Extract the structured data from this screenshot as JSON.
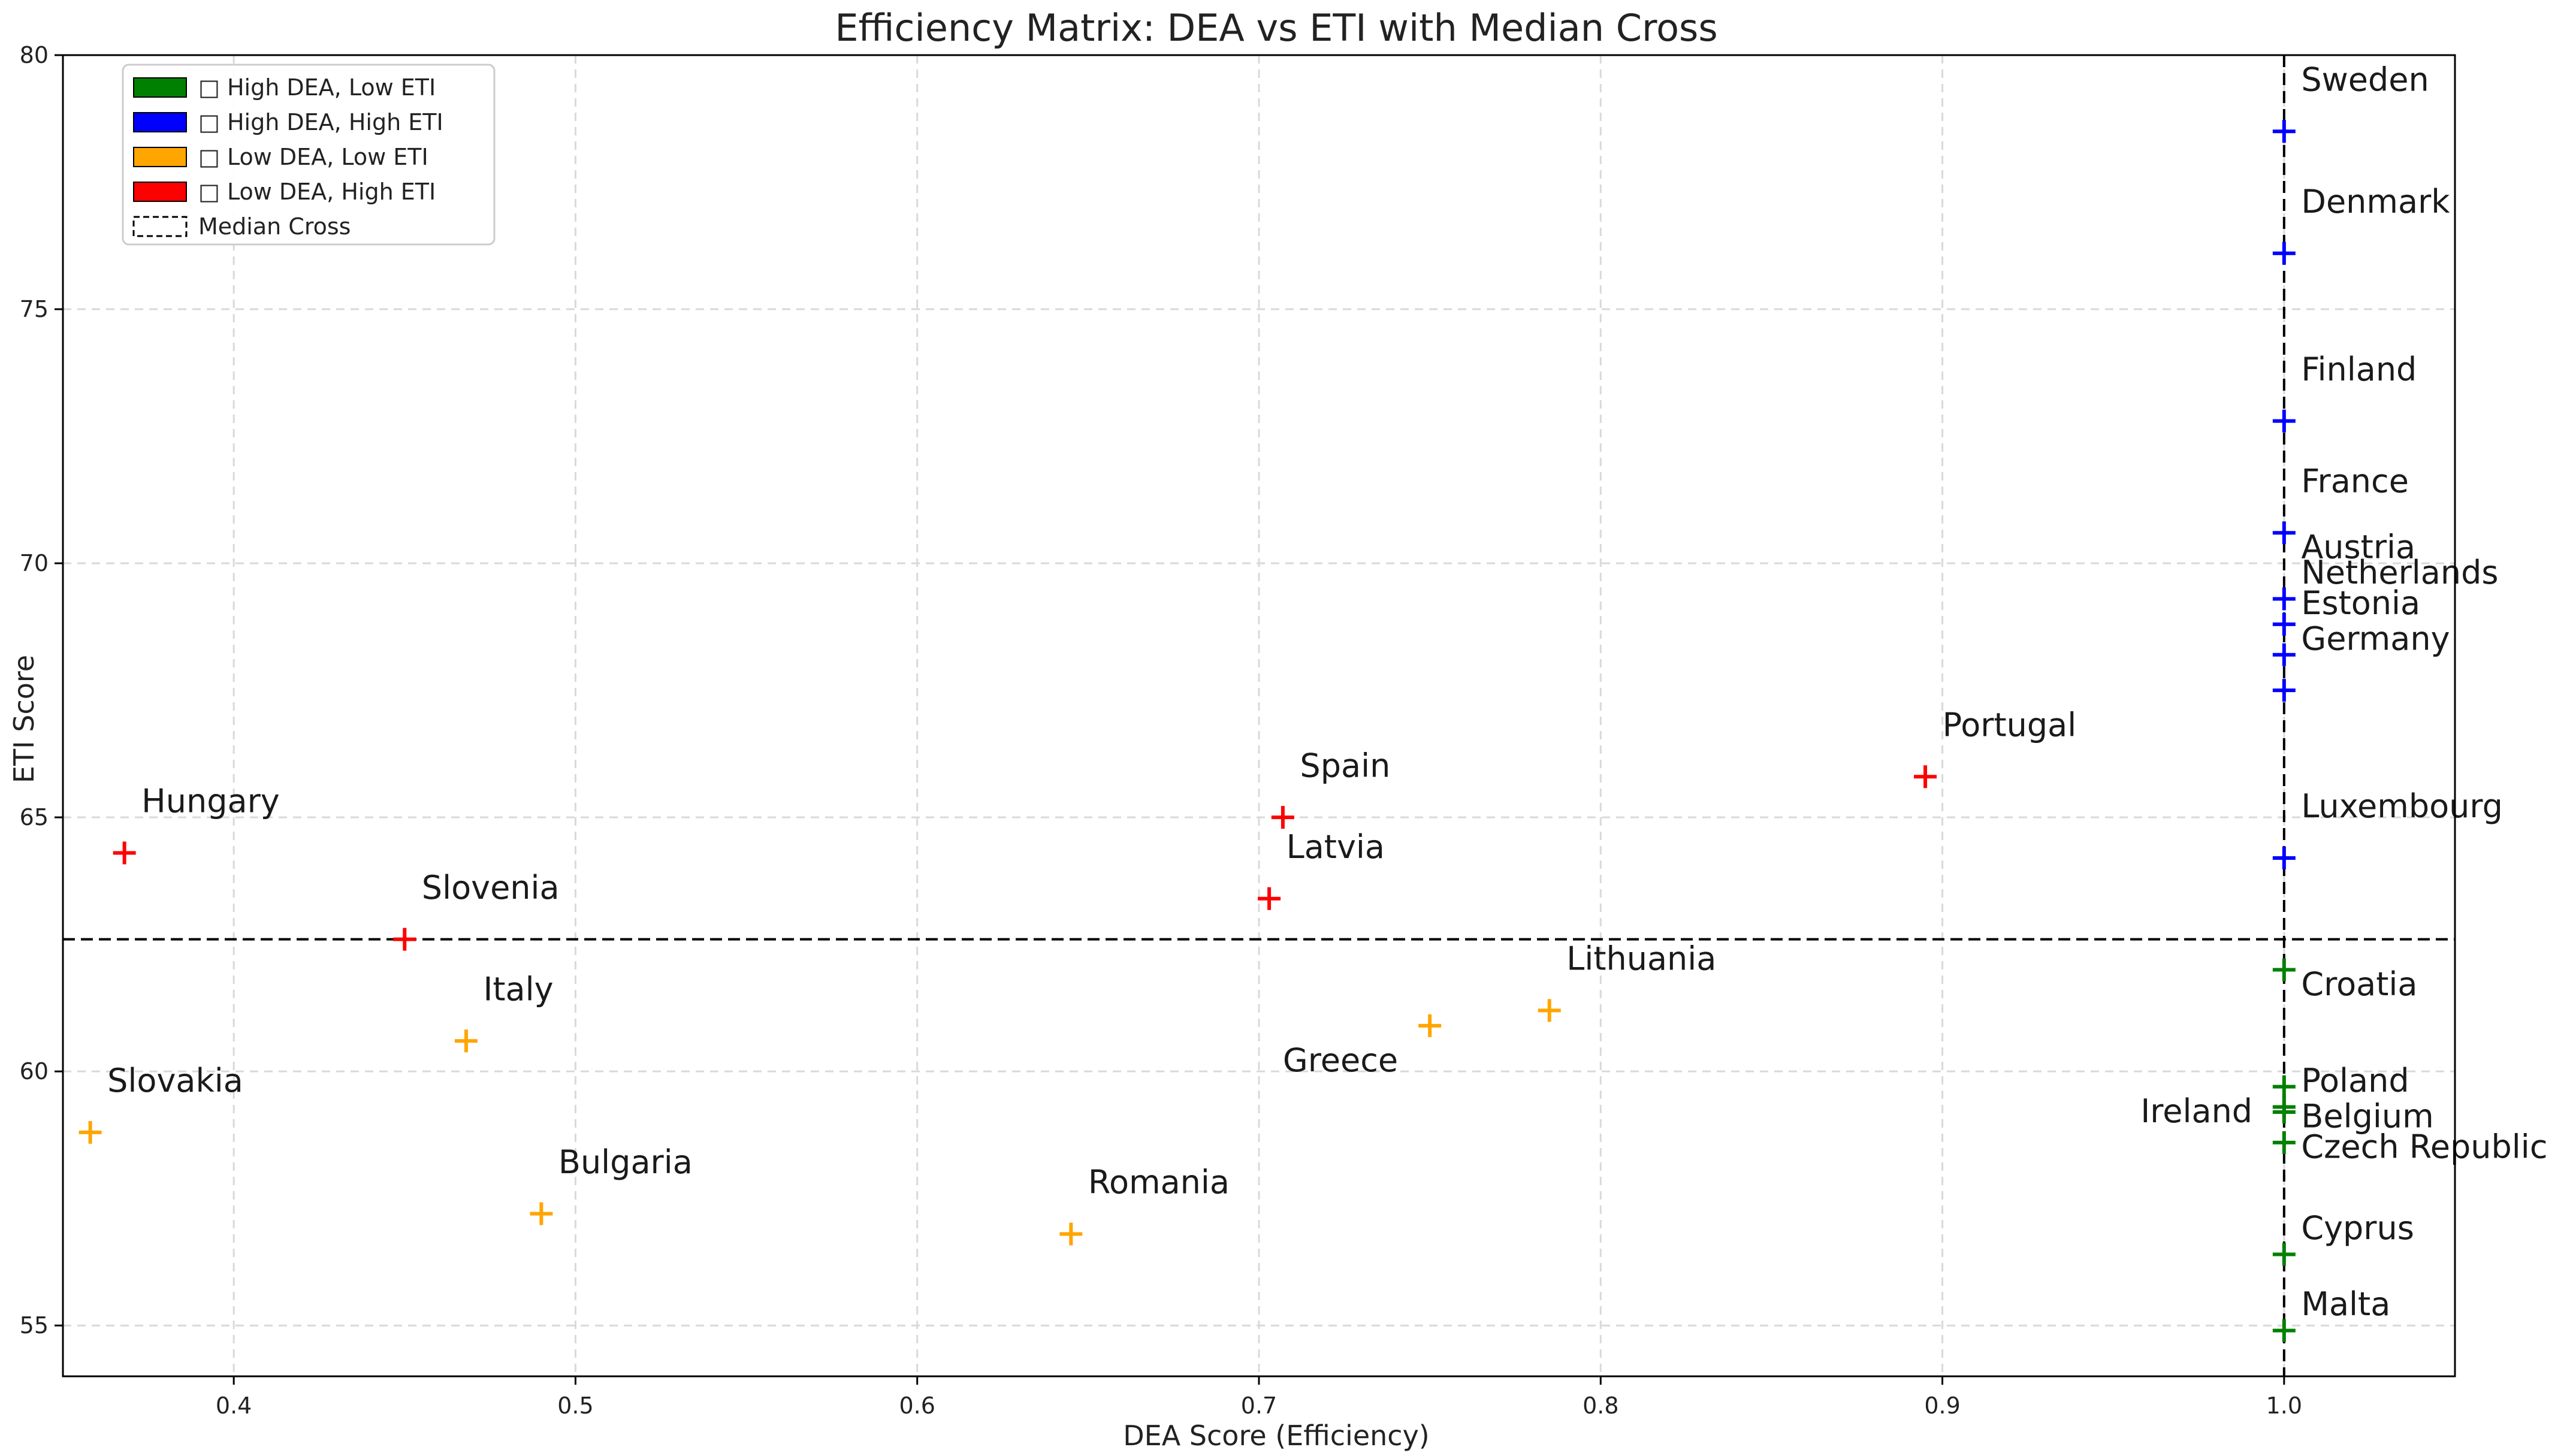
{
  "chart_data": {
    "type": "scatter",
    "title": "Efficiency Matrix: DEA vs ETI with Median Cross",
    "xlabel": "DEA Score (Efficiency)",
    "ylabel": "ETI Score",
    "xlim": [
      0.35,
      1.05
    ],
    "ylim": [
      54,
      80
    ],
    "xticks": [
      0.4,
      0.5,
      0.6,
      0.7,
      0.8,
      0.9,
      1.0
    ],
    "xtick_labels": [
      "0.4",
      "0.5",
      "0.6",
      "0.7",
      "0.8",
      "0.9",
      "1.0"
    ],
    "yticks": [
      55,
      60,
      65,
      70,
      75,
      80
    ],
    "ytick_labels": [
      "55",
      "60",
      "65",
      "70",
      "75",
      "80"
    ],
    "grid": true,
    "legend_position": "top-left",
    "median": {
      "x": 1.0,
      "y": 62.6
    },
    "legend": [
      {
        "label": "□ High DEA, Low ETI",
        "color": "#008000",
        "kind": "patch"
      },
      {
        "label": "□ High DEA, High ETI",
        "color": "#0000ff",
        "kind": "patch"
      },
      {
        "label": "□ Low DEA, Low ETI",
        "color": "#ffa500",
        "kind": "patch"
      },
      {
        "label": "□ Low DEA, High ETI",
        "color": "#ff0000",
        "kind": "patch"
      },
      {
        "label": "Median Cross",
        "color": "#000000",
        "kind": "dashed"
      }
    ],
    "colors": {
      "high_dea_low_eti": "#008000",
      "high_dea_high_eti": "#0000ff",
      "low_dea_low_eti": "#ffa500",
      "low_dea_high_eti": "#ff0000"
    },
    "points": [
      {
        "country": "Sweden",
        "x": 1.0,
        "y": 78.5,
        "group": "high_dea_high_eti",
        "lx": 1.005,
        "ly": 79.3
      },
      {
        "country": "Denmark",
        "x": 1.0,
        "y": 76.1,
        "group": "high_dea_high_eti",
        "lx": 1.005,
        "ly": 76.9
      },
      {
        "country": "Finland",
        "x": 1.0,
        "y": 72.8,
        "group": "high_dea_high_eti",
        "lx": 1.005,
        "ly": 73.6
      },
      {
        "country": "France",
        "x": 1.0,
        "y": 70.6,
        "group": "high_dea_high_eti",
        "lx": 1.005,
        "ly": 71.4
      },
      {
        "country": "Austria",
        "x": 1.0,
        "y": 69.3,
        "group": "high_dea_high_eti",
        "lx": 1.005,
        "ly": 70.1
      },
      {
        "country": "Netherlands",
        "x": 1.0,
        "y": 68.8,
        "group": "high_dea_high_eti",
        "lx": 1.005,
        "ly": 69.6
      },
      {
        "country": "Estonia",
        "x": 1.0,
        "y": 68.2,
        "group": "high_dea_high_eti",
        "lx": 1.005,
        "ly": 69.0
      },
      {
        "country": "Germany",
        "x": 1.0,
        "y": 67.5,
        "group": "high_dea_high_eti",
        "lx": 1.005,
        "ly": 68.3
      },
      {
        "country": "Luxembourg",
        "x": 1.0,
        "y": 64.2,
        "group": "high_dea_high_eti",
        "lx": 1.005,
        "ly": 65.0
      },
      {
        "country": "Portugal",
        "x": 0.895,
        "y": 65.8,
        "group": "low_dea_high_eti",
        "lx": 0.9,
        "ly": 66.6
      },
      {
        "country": "Spain",
        "x": 0.707,
        "y": 65.0,
        "group": "low_dea_high_eti",
        "lx": 0.712,
        "ly": 65.8
      },
      {
        "country": "Latvia",
        "x": 0.703,
        "y": 63.4,
        "group": "low_dea_high_eti",
        "lx": 0.708,
        "ly": 64.2
      },
      {
        "country": "Hungary",
        "x": 0.368,
        "y": 64.3,
        "group": "low_dea_high_eti",
        "lx": 0.373,
        "ly": 65.1
      },
      {
        "country": "Slovenia",
        "x": 0.45,
        "y": 62.6,
        "group": "low_dea_high_eti",
        "lx": 0.455,
        "ly": 63.4
      },
      {
        "country": "Italy",
        "x": 0.468,
        "y": 60.6,
        "group": "low_dea_low_eti",
        "lx": 0.473,
        "ly": 61.4
      },
      {
        "country": "Slovakia",
        "x": 0.358,
        "y": 58.8,
        "group": "low_dea_low_eti",
        "lx": 0.363,
        "ly": 59.6
      },
      {
        "country": "Bulgaria",
        "x": 0.49,
        "y": 57.2,
        "group": "low_dea_low_eti",
        "lx": 0.495,
        "ly": 58.0
      },
      {
        "country": "Romania",
        "x": 0.645,
        "y": 56.8,
        "group": "low_dea_low_eti",
        "lx": 0.65,
        "ly": 57.6
      },
      {
        "country": "Greece",
        "x": 0.75,
        "y": 60.9,
        "group": "low_dea_low_eti",
        "lx": 0.707,
        "ly": 60.0
      },
      {
        "country": "Lithuania",
        "x": 0.785,
        "y": 61.2,
        "group": "low_dea_low_eti",
        "lx": 0.79,
        "ly": 62.0
      },
      {
        "country": "Croatia",
        "x": 1.0,
        "y": 62.0,
        "group": "high_dea_low_eti",
        "lx": 1.005,
        "ly": 61.5
      },
      {
        "country": "Poland",
        "x": 1.0,
        "y": 59.7,
        "group": "high_dea_low_eti",
        "lx": 1.005,
        "ly": 59.6
      },
      {
        "country": "Belgium",
        "x": 1.0,
        "y": 59.3,
        "group": "high_dea_low_eti",
        "lx": 1.005,
        "ly": 58.9
      },
      {
        "country": "Ireland",
        "x": 1.0,
        "y": 59.2,
        "group": "high_dea_low_eti",
        "lx": 0.958,
        "ly": 59.0
      },
      {
        "country": "Czech Republic",
        "x": 1.0,
        "y": 58.6,
        "group": "high_dea_low_eti",
        "lx": 1.005,
        "ly": 58.3
      },
      {
        "country": "Cyprus",
        "x": 1.0,
        "y": 56.4,
        "group": "high_dea_low_eti",
        "lx": 1.005,
        "ly": 56.7
      },
      {
        "country": "Malta",
        "x": 1.0,
        "y": 54.9,
        "group": "high_dea_low_eti",
        "lx": 1.005,
        "ly": 55.2
      }
    ]
  }
}
